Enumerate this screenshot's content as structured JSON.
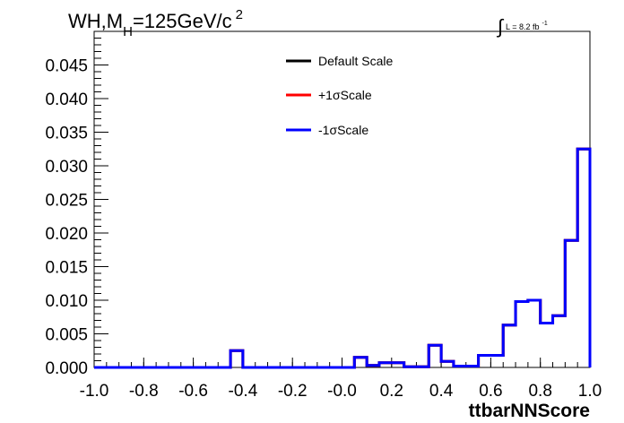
{
  "chart_data": {
    "type": "step-histogram",
    "title": {
      "main": "WH,M",
      "subscript": "H",
      "rest": "=125GeV/c",
      "superscript": "2"
    },
    "luminosity": {
      "symbol": "∫",
      "text": "L = 8.2 fb",
      "superscript": "-1"
    },
    "xlabel": "ttbarNNScore",
    "xlim": [
      -1.0,
      1.0
    ],
    "ylim": [
      0.0,
      0.05
    ],
    "x_ticks": [
      "-1.0",
      "-0.8",
      "-0.6",
      "-0.4",
      "-0.2",
      "-0.0",
      "0.2",
      "0.4",
      "0.6",
      "0.8",
      "1.0"
    ],
    "x_tick_values": [
      -1.0,
      -0.8,
      -0.6,
      -0.4,
      -0.2,
      0.0,
      0.2,
      0.4,
      0.6,
      0.8,
      1.0
    ],
    "y_ticks": [
      "0.000",
      "0.005",
      "0.010",
      "0.015",
      "0.020",
      "0.025",
      "0.030",
      "0.035",
      "0.040",
      "0.045"
    ],
    "y_tick_values": [
      0.0,
      0.005,
      0.01,
      0.015,
      0.02,
      0.025,
      0.03,
      0.035,
      0.04,
      0.045
    ],
    "bin_edges": [
      -1.0,
      -0.95,
      -0.9,
      -0.85,
      -0.8,
      -0.75,
      -0.7,
      -0.65,
      -0.6,
      -0.55,
      -0.5,
      -0.45,
      -0.4,
      -0.35,
      -0.3,
      -0.25,
      -0.2,
      -0.15,
      -0.1,
      -0.05,
      0.0,
      0.05,
      0.1,
      0.15,
      0.2,
      0.25,
      0.3,
      0.35,
      0.4,
      0.45,
      0.5,
      0.55,
      0.6,
      0.65,
      0.7,
      0.75,
      0.8,
      0.85,
      0.9,
      0.95,
      1.0
    ],
    "series": [
      {
        "name": "Default Scale",
        "color": "#000000",
        "values": [
          0,
          0,
          0,
          0,
          0,
          0,
          0,
          0,
          0,
          0,
          0,
          0.0025,
          0,
          0,
          0,
          0,
          0,
          0,
          0,
          0,
          0,
          0.0015,
          0.0003,
          0.0007,
          0.0007,
          0.0001,
          0.0001,
          0.0033,
          0.0009,
          0.0002,
          0.0002,
          0.0018,
          0.0018,
          0.0063,
          0.0098,
          0.01,
          0.0066,
          0.0077,
          0.0189,
          0.0325
        ]
      },
      {
        "name": "+1σScale",
        "color": "#ff0000",
        "values": [
          0,
          0,
          0,
          0,
          0,
          0,
          0,
          0,
          0,
          0,
          0,
          0.0025,
          0,
          0,
          0,
          0,
          0,
          0,
          0,
          0,
          0,
          0.0015,
          0.0003,
          0.0007,
          0.0007,
          0.0001,
          0.0001,
          0.0033,
          0.0009,
          0.0002,
          0.0002,
          0.0018,
          0.0018,
          0.0063,
          0.0098,
          0.01,
          0.0066,
          0.0077,
          0.0189,
          0.0325
        ]
      },
      {
        "name": "-1σScale",
        "color": "#0000ff",
        "values": [
          0,
          0,
          0,
          0,
          0,
          0,
          0,
          0,
          0,
          0,
          0,
          0.0025,
          0,
          0,
          0,
          0,
          0,
          0,
          0,
          0,
          0,
          0.0015,
          0.0003,
          0.0007,
          0.0007,
          0.0001,
          0.0001,
          0.0033,
          0.0009,
          0.0002,
          0.0002,
          0.0018,
          0.0018,
          0.0063,
          0.0098,
          0.01,
          0.0066,
          0.0077,
          0.0189,
          0.0325
        ]
      }
    ],
    "legend": {
      "placement": "top-center",
      "entries": [
        "Default Scale",
        "+1σScale",
        "-1σScale"
      ]
    },
    "grid": false
  }
}
